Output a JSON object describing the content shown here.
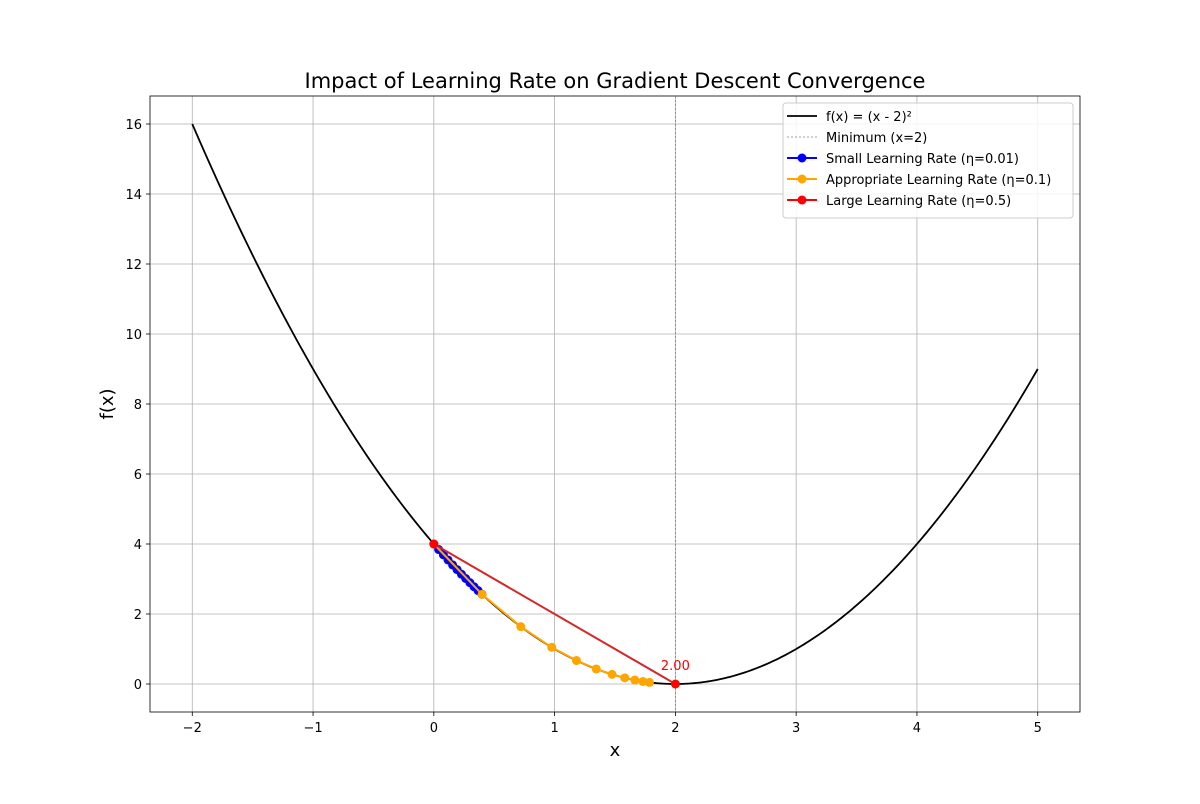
{
  "chart_data": {
    "type": "line",
    "title": "Impact of Learning Rate on Gradient Descent Convergence",
    "xlabel": "x",
    "ylabel": "f(x)",
    "xlim": [
      -2.35,
      5.35
    ],
    "ylim": [
      -0.8,
      16.8
    ],
    "xticks": [
      -2,
      -1,
      0,
      1,
      2,
      3,
      4,
      5
    ],
    "yticks": [
      0,
      2,
      4,
      6,
      8,
      10,
      12,
      14,
      16
    ],
    "xtick_labels": [
      "−2",
      "−1",
      "0",
      "1",
      "2",
      "3",
      "4",
      "5"
    ],
    "ytick_labels": [
      "0",
      "2",
      "4",
      "6",
      "8",
      "10",
      "12",
      "14",
      "16"
    ],
    "grid": true,
    "legend_position": "top-right",
    "curve": {
      "name": "f(x) = (x - 2)²",
      "x_range": [
        -2,
        5
      ],
      "color": "#000000"
    },
    "minimum_line": {
      "name": "Minimum (x=2)",
      "x": 2,
      "color": "#808080"
    },
    "series": [
      {
        "name": "Small Learning Rate (η=0.01)",
        "color": "#0000ff",
        "x": [
          0,
          0.04,
          0.0792,
          0.1176,
          0.1553,
          0.1922,
          0.2284,
          0.2638,
          0.2985,
          0.3326,
          0.3659,
          0.3986
        ]
      },
      {
        "name": "Appropriate Learning Rate (η=0.1)",
        "color": "#ffa500",
        "x": [
          0,
          0.4,
          0.72,
          0.976,
          1.1808,
          1.3446,
          1.4757,
          1.5806,
          1.6645,
          1.7316,
          1.7853
        ]
      },
      {
        "name": "Large Learning Rate (η=0.5)",
        "color": "#ff0000",
        "line_color": "#d62728",
        "x": [
          0,
          2
        ]
      }
    ],
    "annotations": [
      {
        "text": "2.00",
        "x": 2,
        "y": 0,
        "color": "#ff0000"
      }
    ]
  }
}
